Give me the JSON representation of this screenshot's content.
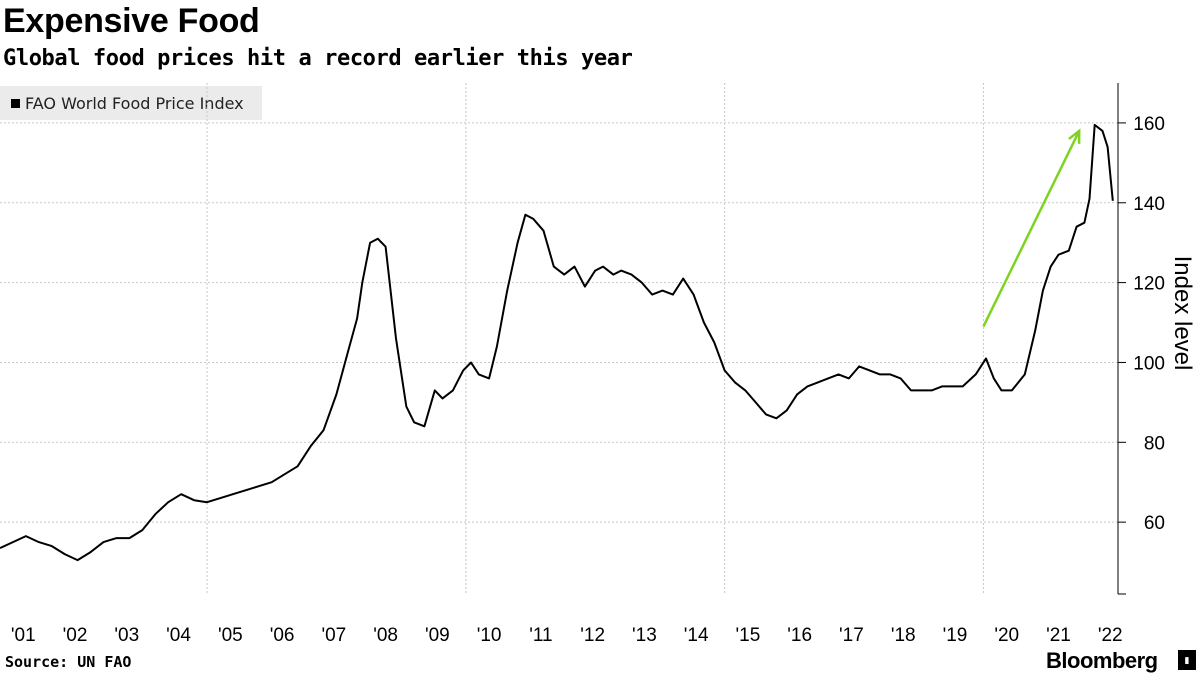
{
  "chart_data": {
    "type": "line",
    "title": "Expensive Food",
    "subtitle": "Global food prices hit a record earlier this year",
    "ylabel": "Index level",
    "xlabel": "",
    "ylim": [
      42,
      170
    ],
    "y_ticks": [
      60,
      80,
      100,
      120,
      140,
      160
    ],
    "x_tick_labels": [
      "'01",
      "'02",
      "'03",
      "'04",
      "'05",
      "'06",
      "'07",
      "'08",
      "'09",
      "'10",
      "'11",
      "'12",
      "'13",
      "'14",
      "'15",
      "'16",
      "'17",
      "'18",
      "'19",
      "'20",
      "'21",
      "'22"
    ],
    "grid": true,
    "legend_position": "top-left",
    "series": [
      {
        "name": "FAO World Food Price Index",
        "color": "#000000",
        "points": [
          [
            2001.0,
            53.5
          ],
          [
            2001.25,
            55.0
          ],
          [
            2001.5,
            56.5
          ],
          [
            2001.75,
            55.0
          ],
          [
            2002.0,
            54.0
          ],
          [
            2002.25,
            52.0
          ],
          [
            2002.5,
            50.5
          ],
          [
            2002.75,
            52.5
          ],
          [
            2003.0,
            55.0
          ],
          [
            2003.25,
            56.0
          ],
          [
            2003.5,
            56.0
          ],
          [
            2003.75,
            58.0
          ],
          [
            2004.0,
            62.0
          ],
          [
            2004.25,
            65.0
          ],
          [
            2004.5,
            67.0
          ],
          [
            2004.75,
            65.5
          ],
          [
            2005.0,
            65.0
          ],
          [
            2005.25,
            66.0
          ],
          [
            2005.5,
            67.0
          ],
          [
            2005.75,
            68.0
          ],
          [
            2006.0,
            69.0
          ],
          [
            2006.25,
            70.0
          ],
          [
            2006.5,
            72.0
          ],
          [
            2006.75,
            74.0
          ],
          [
            2007.0,
            79.0
          ],
          [
            2007.25,
            83.0
          ],
          [
            2007.5,
            92.0
          ],
          [
            2007.75,
            104.0
          ],
          [
            2007.9,
            111.0
          ],
          [
            2008.0,
            120.0
          ],
          [
            2008.15,
            130.0
          ],
          [
            2008.3,
            131.0
          ],
          [
            2008.45,
            129.0
          ],
          [
            2008.65,
            106.0
          ],
          [
            2008.85,
            89.0
          ],
          [
            2009.0,
            85.0
          ],
          [
            2009.2,
            84.0
          ],
          [
            2009.4,
            93.0
          ],
          [
            2009.55,
            91.0
          ],
          [
            2009.75,
            93.0
          ],
          [
            2009.95,
            98.0
          ],
          [
            2010.1,
            100.0
          ],
          [
            2010.25,
            97.0
          ],
          [
            2010.45,
            96.0
          ],
          [
            2010.6,
            104.0
          ],
          [
            2010.8,
            118.0
          ],
          [
            2011.0,
            130.0
          ],
          [
            2011.15,
            137.0
          ],
          [
            2011.3,
            136.0
          ],
          [
            2011.5,
            133.0
          ],
          [
            2011.7,
            124.0
          ],
          [
            2011.9,
            122.0
          ],
          [
            2012.1,
            124.0
          ],
          [
            2012.3,
            119.0
          ],
          [
            2012.5,
            123.0
          ],
          [
            2012.65,
            124.0
          ],
          [
            2012.85,
            122.0
          ],
          [
            2013.0,
            123.0
          ],
          [
            2013.2,
            122.0
          ],
          [
            2013.4,
            120.0
          ],
          [
            2013.6,
            117.0
          ],
          [
            2013.8,
            118.0
          ],
          [
            2014.0,
            117.0
          ],
          [
            2014.2,
            121.0
          ],
          [
            2014.4,
            117.0
          ],
          [
            2014.6,
            110.0
          ],
          [
            2014.8,
            105.0
          ],
          [
            2015.0,
            98.0
          ],
          [
            2015.2,
            95.0
          ],
          [
            2015.4,
            93.0
          ],
          [
            2015.6,
            90.0
          ],
          [
            2015.8,
            87.0
          ],
          [
            2016.0,
            86.0
          ],
          [
            2016.2,
            88.0
          ],
          [
            2016.4,
            92.0
          ],
          [
            2016.6,
            94.0
          ],
          [
            2016.8,
            95.0
          ],
          [
            2017.0,
            96.0
          ],
          [
            2017.2,
            97.0
          ],
          [
            2017.4,
            96.0
          ],
          [
            2017.6,
            99.0
          ],
          [
            2017.8,
            98.0
          ],
          [
            2018.0,
            97.0
          ],
          [
            2018.2,
            97.0
          ],
          [
            2018.4,
            96.0
          ],
          [
            2018.6,
            93.0
          ],
          [
            2018.8,
            93.0
          ],
          [
            2019.0,
            93.0
          ],
          [
            2019.2,
            94.0
          ],
          [
            2019.4,
            94.0
          ],
          [
            2019.6,
            94.0
          ],
          [
            2019.85,
            97.0
          ],
          [
            2020.05,
            101.0
          ],
          [
            2020.2,
            96.0
          ],
          [
            2020.35,
            93.0
          ],
          [
            2020.55,
            93.0
          ],
          [
            2020.8,
            97.0
          ],
          [
            2021.0,
            108.0
          ],
          [
            2021.15,
            118.0
          ],
          [
            2021.3,
            124.0
          ],
          [
            2021.45,
            127.0
          ],
          [
            2021.65,
            128.0
          ],
          [
            2021.8,
            134.0
          ],
          [
            2021.95,
            135.0
          ],
          [
            2022.05,
            141.0
          ],
          [
            2022.15,
            159.5
          ],
          [
            2022.3,
            158.0
          ],
          [
            2022.4,
            154.0
          ],
          [
            2022.5,
            140.5
          ]
        ]
      }
    ],
    "annotation_arrow": {
      "color": "#7dd420",
      "from": [
        2020.0,
        109.0
      ],
      "to": [
        2021.85,
        158.0
      ]
    }
  },
  "source": "Source: UN FAO",
  "brand": "Bloomberg"
}
